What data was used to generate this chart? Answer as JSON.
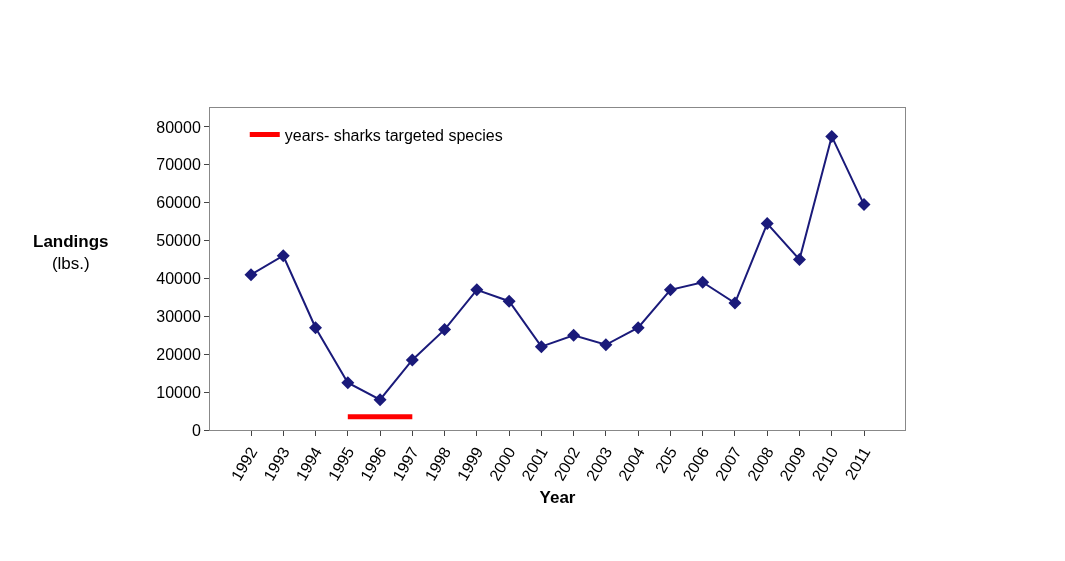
{
  "chart_data": {
    "type": "line",
    "xlabel": "Year",
    "ylabel": "Landings\n(lbs.)",
    "categories": [
      "1992",
      "1993",
      "1994",
      "1995",
      "1996",
      "1997",
      "1998",
      "1999",
      "2000",
      "2001",
      "2002",
      "2003",
      "2004",
      "205",
      "2006",
      "2007",
      "2008",
      "2009",
      "2010",
      "2011"
    ],
    "series": [
      {
        "color": "#1a1a7a",
        "marker": "diamond",
        "values": [
          41000,
          46000,
          27000,
          12500,
          8000,
          18500,
          26500,
          37000,
          34000,
          22000,
          25000,
          22500,
          27000,
          37000,
          39000,
          33500,
          54500,
          45000,
          77500,
          59500
        ]
      },
      {
        "name": "years- sharks targeted species",
        "color": "#ff0000",
        "marker": "none",
        "values": [
          null,
          null,
          null,
          3500,
          3500,
          3500,
          null,
          null,
          null,
          null,
          null,
          null,
          null,
          null,
          null,
          null,
          null,
          null,
          null,
          null
        ]
      }
    ],
    "ylim": [
      0,
      85000
    ],
    "yticks": [
      0,
      10000,
      20000,
      30000,
      40000,
      50000,
      60000,
      70000,
      80000
    ],
    "grid": false,
    "legend": "top left"
  }
}
